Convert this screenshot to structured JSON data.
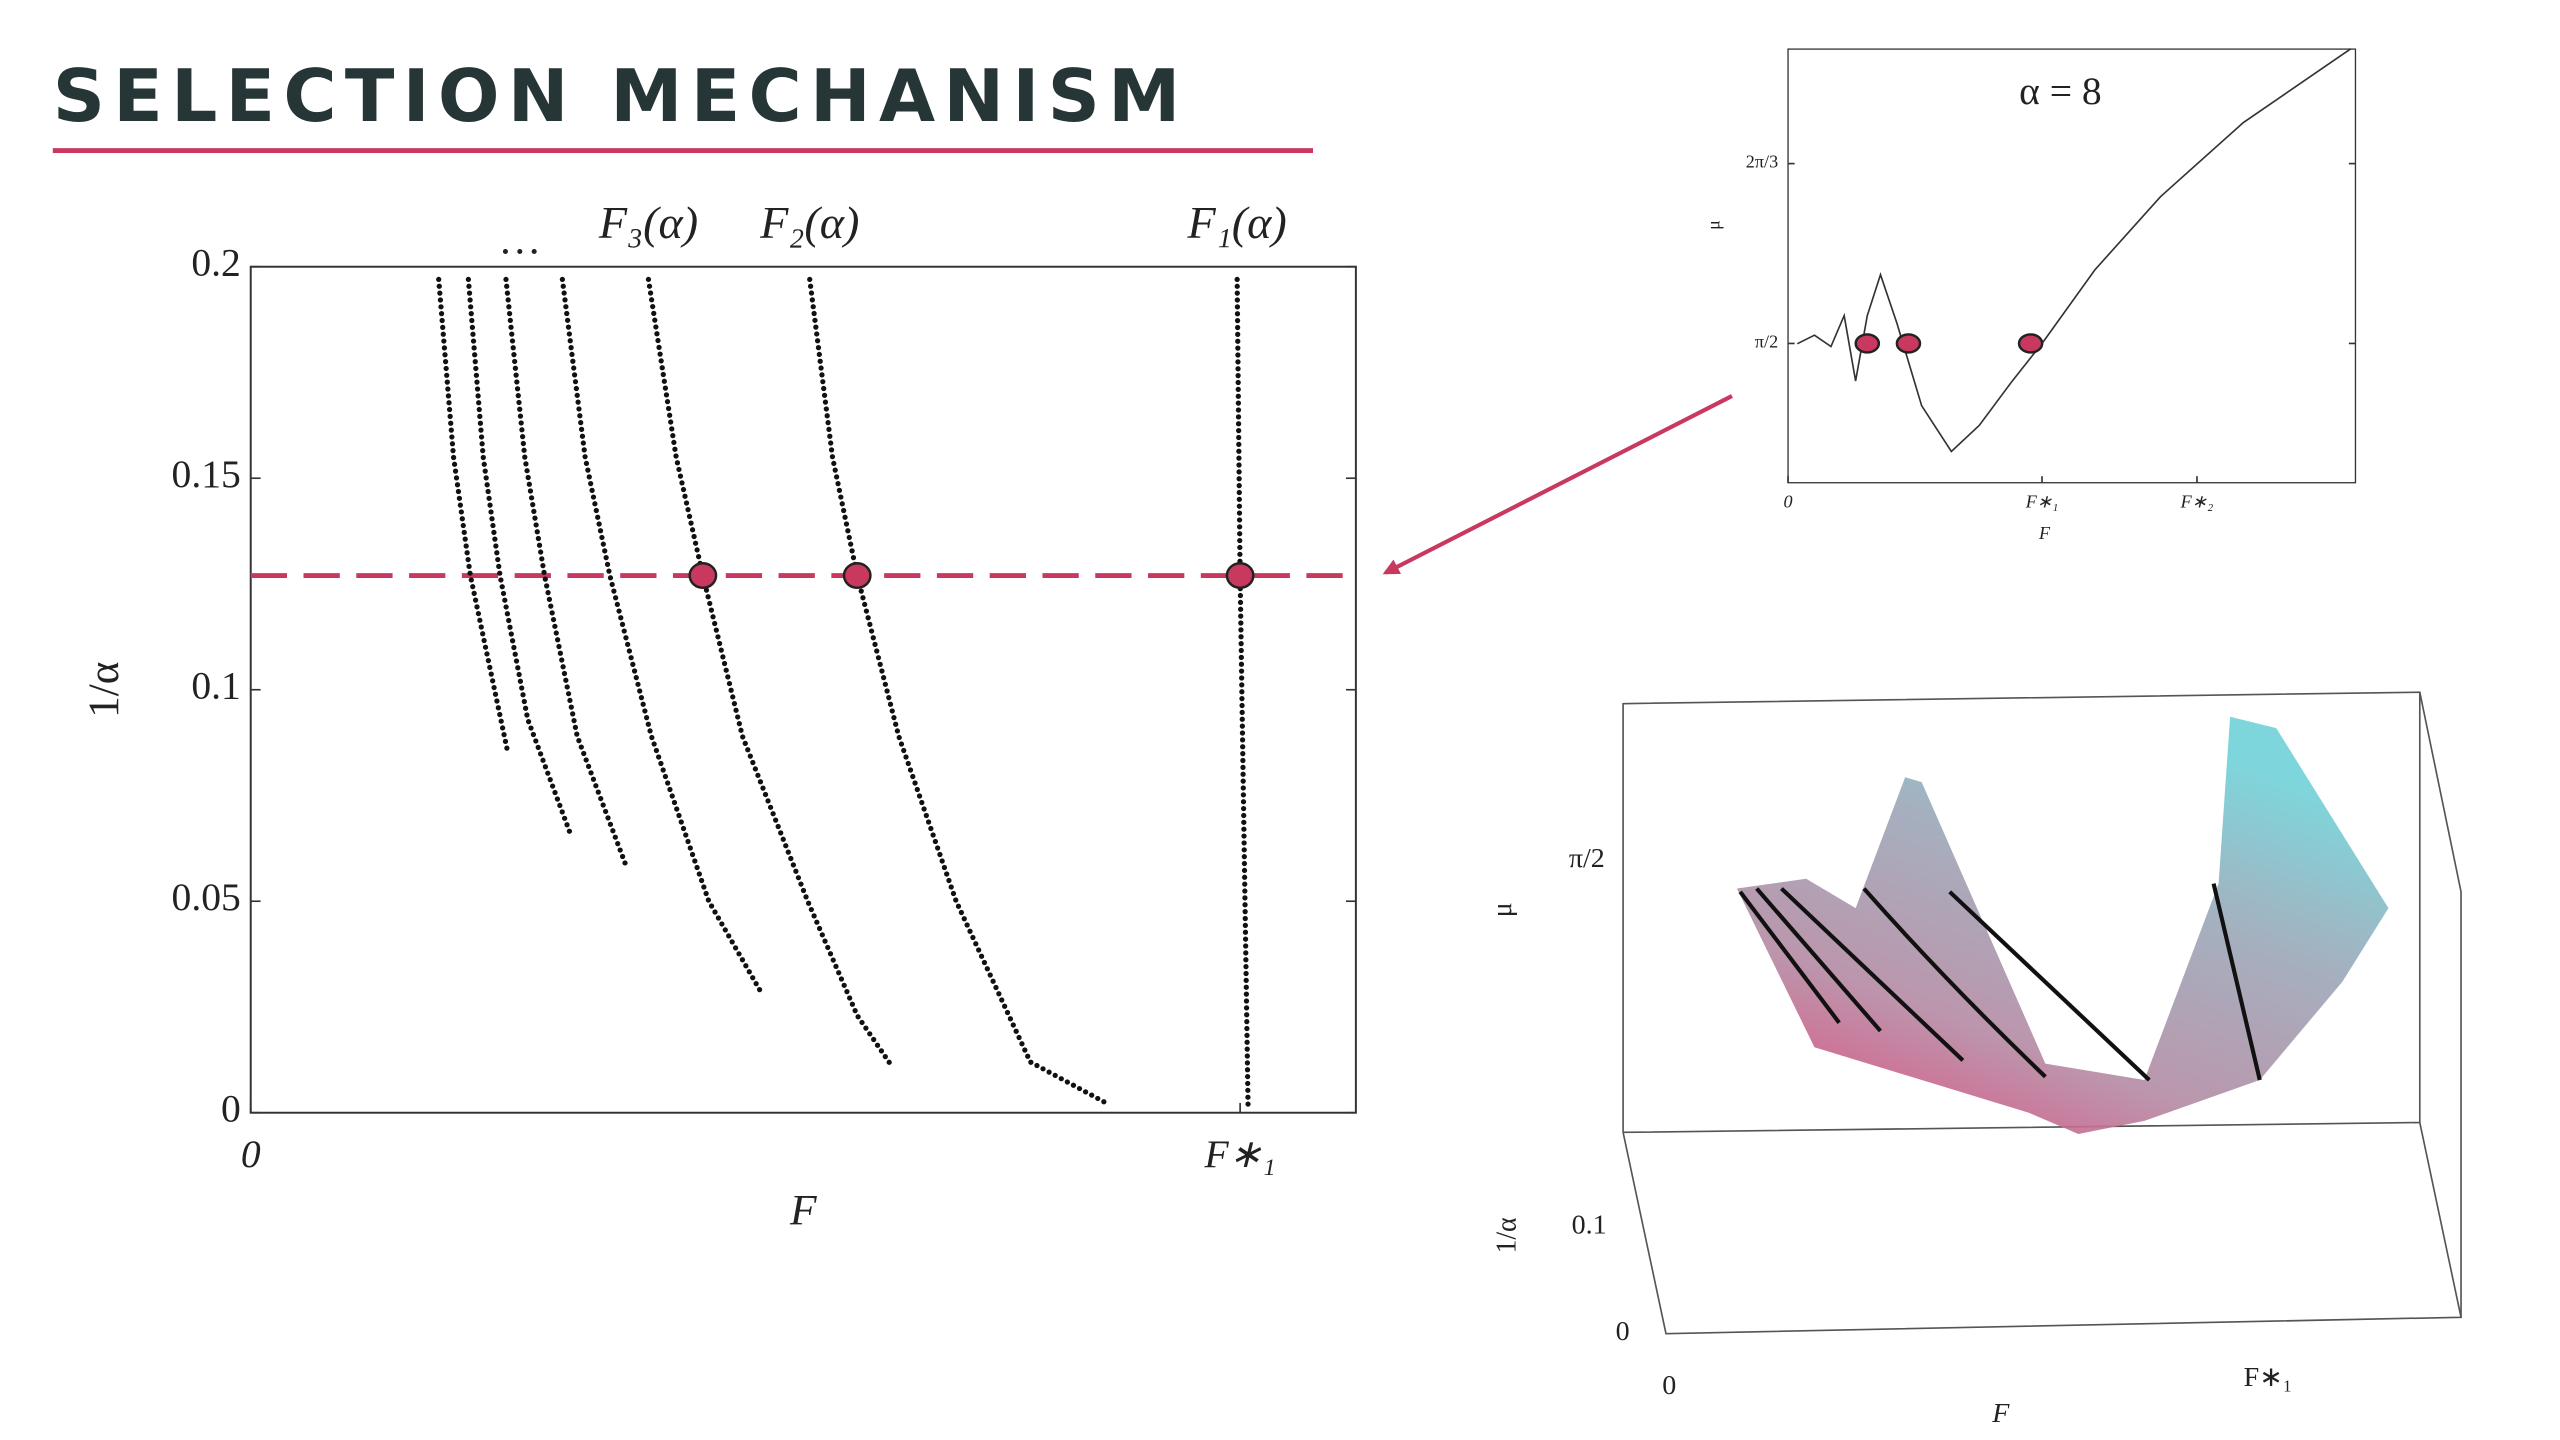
{
  "title": "SELECTION MECHANISM",
  "chart_data": [
    {
      "type": "line",
      "xlabel": "F",
      "ylabel": "1/α",
      "xlim": [
        0,
        1.117
      ],
      "ylim": [
        0,
        0.2
      ],
      "xticks": [
        0,
        {
          "value": 1,
          "label": "F∗₁"
        }
      ],
      "yticks": [
        0,
        0.05,
        0.1,
        0.15,
        0.2
      ],
      "ellipsis_label": "…",
      "line_style": "dotted",
      "series": [
        {
          "name": "F₁(α)",
          "color": "#111111",
          "x": [
            0.997,
            1.0,
            1.008
          ],
          "values": [
            0.197,
            0.127,
            0.002
          ]
        },
        {
          "name": "F₂(α)",
          "color": "#111111",
          "x": [
            0.565,
            0.588,
            0.613,
            0.655,
            0.713,
            0.788,
            0.867
          ],
          "values": [
            0.197,
            0.155,
            0.127,
            0.089,
            0.05,
            0.012,
            0.002
          ]
        },
        {
          "name": "F₃(α)",
          "color": "#111111",
          "x": [
            0.402,
            0.43,
            0.457,
            0.497,
            0.563,
            0.613,
            0.648
          ],
          "values": [
            0.197,
            0.155,
            0.127,
            0.089,
            0.05,
            0.023,
            0.011
          ]
        },
        {
          "color": "#111111",
          "x": [
            0.315,
            0.338,
            0.363,
            0.405,
            0.463,
            0.517
          ],
          "values": [
            0.197,
            0.155,
            0.127,
            0.089,
            0.05,
            0.028
          ]
        },
        {
          "color": "#111111",
          "x": [
            0.258,
            0.277,
            0.297,
            0.33,
            0.38
          ],
          "values": [
            0.197,
            0.155,
            0.127,
            0.089,
            0.058
          ]
        },
        {
          "color": "#111111",
          "x": [
            0.22,
            0.235,
            0.252,
            0.28,
            0.323
          ],
          "values": [
            0.197,
            0.155,
            0.127,
            0.093,
            0.066
          ]
        },
        {
          "color": "#111111",
          "x": [
            0.19,
            0.205,
            0.222,
            0.26
          ],
          "values": [
            0.197,
            0.155,
            0.127,
            0.085
          ]
        }
      ],
      "hline": {
        "value": 0.127,
        "color": "#c8385f"
      },
      "highlights": {
        "x": [
          0.457,
          0.613,
          1.0
        ],
        "values": [
          0.127,
          0.127,
          0.127
        ],
        "color": "#c8385f"
      }
    },
    {
      "type": "line",
      "title": "α = 8",
      "xlabel": "F",
      "ylabel": "μ",
      "xlim": [
        0,
        2.234
      ],
      "ylim": [
        1.166,
        2.427
      ],
      "xticks": [
        0,
        {
          "value": 1,
          "label": "F∗₁"
        },
        {
          "value": 1.61,
          "label": "F∗₂"
        }
      ],
      "yticks": [
        {
          "value": 1.571,
          "label": "π/2"
        },
        {
          "value": 2.094,
          "label": "2π/3"
        }
      ],
      "line_style": "solid",
      "series": [
        {
          "color": "#333333",
          "x": [
            0.039,
            0.104,
            0.169,
            0.221,
            0.266,
            0.312,
            0.364,
            0.429,
            0.526,
            0.643,
            0.753,
            0.883,
            1.0,
            1.208,
            1.468,
            1.792,
            2.214
          ],
          "values": [
            1.571,
            1.595,
            1.562,
            1.652,
            1.462,
            1.652,
            1.771,
            1.629,
            1.39,
            1.257,
            1.333,
            1.462,
            1.571,
            1.785,
            1.999,
            2.213,
            2.427
          ]
        }
      ],
      "highlights": {
        "x": [
          0.312,
          0.474,
          0.955
        ],
        "values": [
          1.571,
          1.571,
          1.571
        ],
        "color": "#c8385f"
      }
    }
  ],
  "surface_plot": {
    "z_tick": "π/2",
    "z_label": "μ",
    "y_label": "1/α",
    "y_tick_high": "0.1",
    "y_tick_low": "0",
    "x_tick_low": "0",
    "x_tick_high": "F∗₁",
    "x_label": "F"
  }
}
